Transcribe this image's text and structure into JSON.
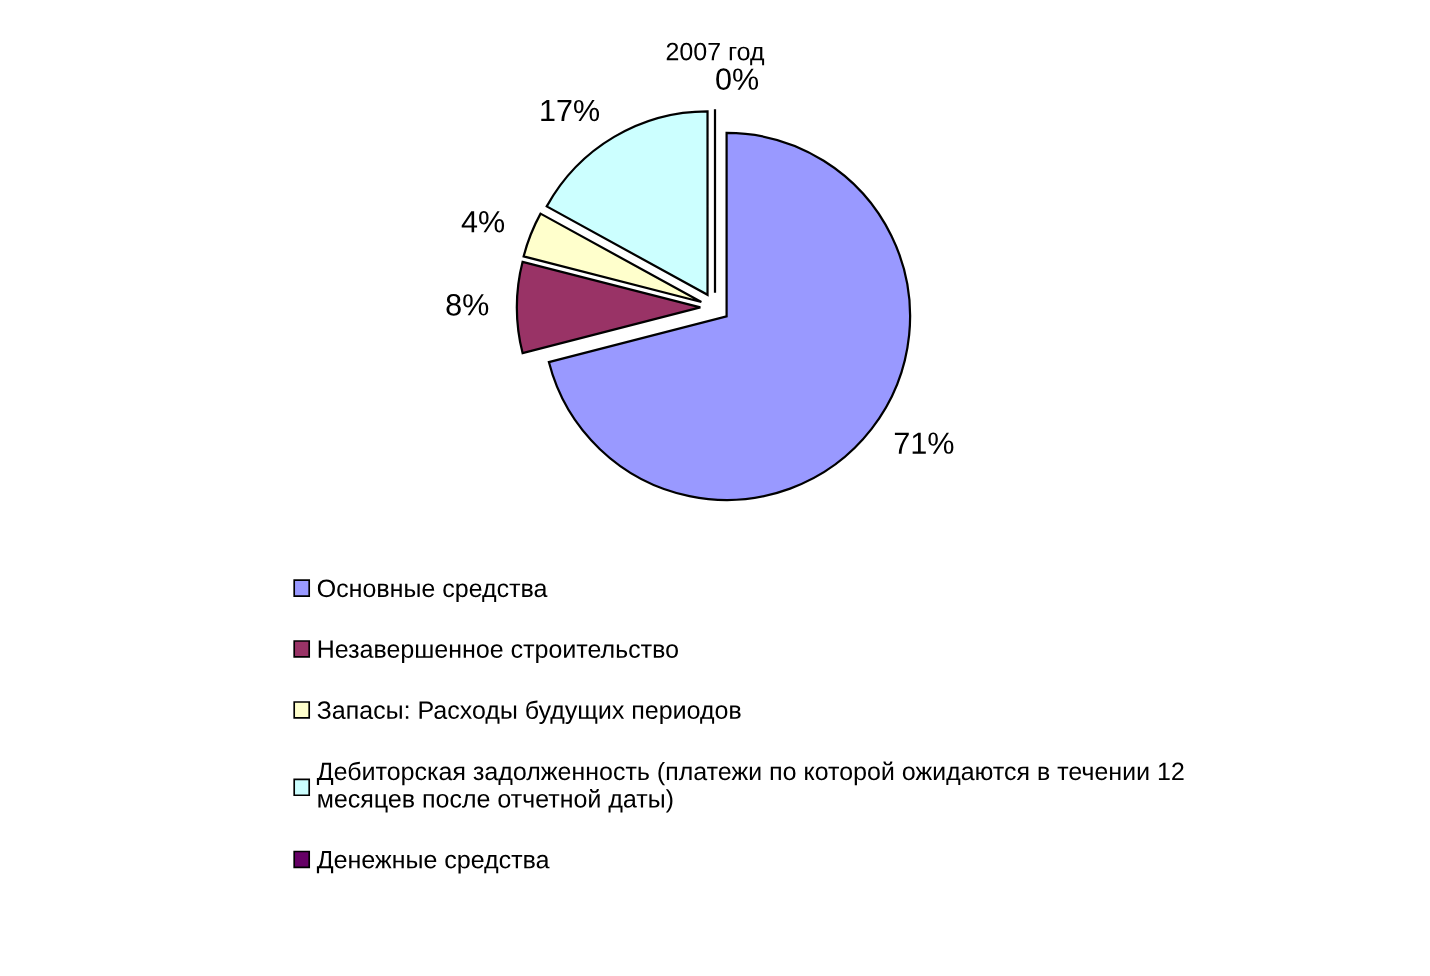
{
  "chart_data": {
    "type": "pie",
    "title": "2007 год",
    "categories": [
      "Основные средства",
      "Незавершенное строительство",
      "Запасы: Расходы будущих периодов",
      "Дебиторская задолженность (платежи по которой ожидаются в течении 12\nмесяцев после отчетной даты)",
      "Денежные средства"
    ],
    "values": [
      71,
      8,
      4,
      17,
      0
    ],
    "value_labels": [
      "71%",
      "8%",
      "4%",
      "17%",
      "0%"
    ],
    "colors": [
      "#9999ff",
      "#993366",
      "#ffffcc",
      "#ccffff",
      "#660066"
    ],
    "legend": "bottom"
  }
}
